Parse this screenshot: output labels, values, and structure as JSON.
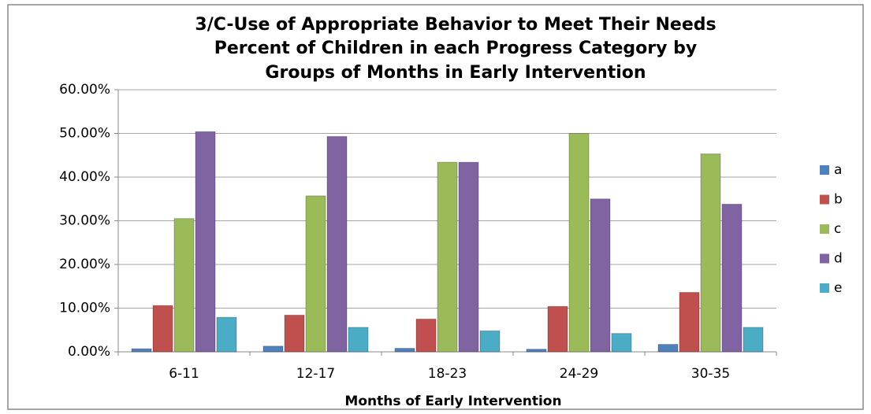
{
  "chart_data": {
    "type": "bar",
    "title": [
      "3/C-Use of Appropriate Behavior to Meet Their Needs",
      "Percent of Children in each Progress Category by",
      "Groups of Months in Early Intervention"
    ],
    "x_label": "Months of Early Intervention",
    "categories": [
      "6-11",
      "12-17",
      "18-23",
      "24-29",
      "30-35"
    ],
    "series": [
      {
        "name": "a",
        "color": "#4f81bd",
        "values": [
          0.7,
          1.3,
          0.8,
          0.6,
          1.7
        ]
      },
      {
        "name": "b",
        "color": "#c0504d",
        "values": [
          10.6,
          8.4,
          7.5,
          10.4,
          13.6
        ]
      },
      {
        "name": "c",
        "color": "#9bbb59",
        "values": [
          30.5,
          35.7,
          43.4,
          50.0,
          45.3
        ]
      },
      {
        "name": "d",
        "color": "#8064a2",
        "values": [
          50.4,
          49.3,
          43.4,
          35.0,
          33.8
        ]
      },
      {
        "name": "e",
        "color": "#4bacc6",
        "values": [
          7.9,
          5.6,
          4.8,
          4.2,
          5.6
        ]
      }
    ],
    "ylim": [
      0,
      60
    ],
    "yticks": [
      {
        "value": 0,
        "label": "0.00%"
      },
      {
        "value": 10,
        "label": "10.00%"
      },
      {
        "value": 20,
        "label": "20.00%"
      },
      {
        "value": 30,
        "label": "30.00%"
      },
      {
        "value": 40,
        "label": "40.00%"
      },
      {
        "value": 50,
        "label": "50.00%"
      },
      {
        "value": 60,
        "label": "60.00%"
      }
    ],
    "grid": true,
    "legend": "right"
  }
}
